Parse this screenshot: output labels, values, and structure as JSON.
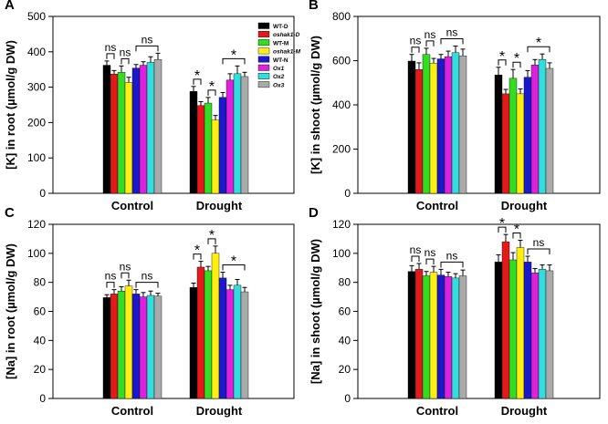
{
  "chart_data": [
    {
      "panel": "A",
      "type": "bar",
      "title": "",
      "xlabel": "",
      "ylabel": "[K] in root (µmol/g DW)",
      "ylim": [
        0,
        500
      ],
      "yticks": [
        0,
        100,
        200,
        300,
        400,
        500
      ],
      "categories": [
        "Control",
        "Drought"
      ],
      "series": [
        {
          "name": "WT-D",
          "color": "#000000",
          "values": [
            362,
            288
          ],
          "errors": [
            12,
            14
          ]
        },
        {
          "name": "oshak1-D",
          "color": "#e41a1a",
          "values": [
            337,
            248
          ],
          "errors": [
            10,
            11
          ]
        },
        {
          "name": "WT-M",
          "color": "#33dd22",
          "values": [
            342,
            255
          ],
          "errors": [
            18,
            16
          ]
        },
        {
          "name": "oshak1-M",
          "color": "#ffee11",
          "values": [
            313,
            207
          ],
          "errors": [
            15,
            13
          ]
        },
        {
          "name": "WT-N",
          "color": "#1a1acc",
          "values": [
            354,
            271
          ],
          "errors": [
            10,
            14
          ]
        },
        {
          "name": "Ox1",
          "color": "#dd22dd",
          "values": [
            362,
            320
          ],
          "errors": [
            10,
            18
          ]
        },
        {
          "name": "Ox2",
          "color": "#33dddd",
          "values": [
            370,
            338
          ],
          "errors": [
            16,
            22
          ]
        },
        {
          "name": "Ox3",
          "color": "#aaaaaa",
          "values": [
            378,
            330
          ],
          "errors": [
            18,
            12
          ]
        }
      ],
      "annotations": {
        "control": [
          "ns",
          "ns",
          "ns"
        ],
        "drought": [
          "*",
          "*",
          "*"
        ]
      },
      "legend": "top-right"
    },
    {
      "panel": "B",
      "type": "bar",
      "title": "",
      "xlabel": "",
      "ylabel": "[K] in shoot (µmol/g DW)",
      "ylim": [
        0,
        800
      ],
      "yticks": [
        0,
        200,
        400,
        600,
        800
      ],
      "categories": [
        "Control",
        "Drought"
      ],
      "series": [
        {
          "name": "WT-D",
          "values": [
            598,
            535
          ],
          "errors": [
            30,
            35
          ]
        },
        {
          "name": "oshak1-D",
          "values": [
            560,
            450
          ],
          "errors": [
            30,
            20
          ]
        },
        {
          "name": "WT-M",
          "values": [
            628,
            520
          ],
          "errors": [
            28,
            40
          ]
        },
        {
          "name": "oshak1-M",
          "values": [
            588,
            450
          ],
          "errors": [
            22,
            22
          ]
        },
        {
          "name": "WT-N",
          "values": [
            608,
            525
          ],
          "errors": [
            20,
            30
          ]
        },
        {
          "name": "Ox1",
          "values": [
            618,
            580
          ],
          "errors": [
            25,
            25
          ]
        },
        {
          "name": "Ox2",
          "values": [
            636,
            605
          ],
          "errors": [
            30,
            25
          ]
        },
        {
          "name": "Ox3",
          "values": [
            622,
            565
          ],
          "errors": [
            30,
            25
          ]
        }
      ],
      "annotations": {
        "control": [
          "ns",
          "ns",
          "ns"
        ],
        "drought": [
          "*",
          "*",
          "*"
        ]
      }
    },
    {
      "panel": "C",
      "type": "bar",
      "title": "",
      "xlabel": "",
      "ylabel": "[Na] in root (µmol/g DW)",
      "ylim": [
        0,
        120
      ],
      "yticks": [
        0,
        20,
        40,
        60,
        80,
        100,
        120
      ],
      "categories": [
        "Control",
        "Drought"
      ],
      "series": [
        {
          "name": "WT-D",
          "values": [
            69.5,
            76.5
          ],
          "errors": [
            2,
            3
          ]
        },
        {
          "name": "oshak1-D",
          "values": [
            72,
            90.5
          ],
          "errors": [
            3,
            4
          ]
        },
        {
          "name": "WT-M",
          "values": [
            74,
            88
          ],
          "errors": [
            3,
            3
          ]
        },
        {
          "name": "oshak1-M",
          "values": [
            77.5,
            100
          ],
          "errors": [
            4,
            5
          ]
        },
        {
          "name": "WT-N",
          "values": [
            72,
            83
          ],
          "errors": [
            3,
            4
          ]
        },
        {
          "name": "Ox1",
          "values": [
            70,
            75
          ],
          "errors": [
            3,
            3
          ]
        },
        {
          "name": "Ox2",
          "values": [
            71,
            78
          ],
          "errors": [
            3,
            4
          ]
        },
        {
          "name": "Ox3",
          "values": [
            70.5,
            73.5
          ],
          "errors": [
            2,
            3
          ]
        }
      ],
      "annotations": {
        "control": [
          "ns",
          "ns",
          "ns"
        ],
        "drought": [
          "*",
          "*",
          "*"
        ]
      }
    },
    {
      "panel": "D",
      "type": "bar",
      "title": "",
      "xlabel": "",
      "ylabel": "[Na] in shoot (µmol/g DW)",
      "ylim": [
        0,
        120
      ],
      "yticks": [
        0,
        20,
        40,
        60,
        80,
        100,
        120
      ],
      "categories": [
        "Control",
        "Drought"
      ],
      "series": [
        {
          "name": "WT-D",
          "values": [
            87.5,
            94
          ],
          "errors": [
            4,
            5
          ]
        },
        {
          "name": "oshak1-D",
          "values": [
            89,
            108
          ],
          "errors": [
            4,
            5
          ]
        },
        {
          "name": "WT-M",
          "values": [
            84.5,
            95.5
          ],
          "errors": [
            3,
            5
          ]
        },
        {
          "name": "oshak1-M",
          "values": [
            87,
            104
          ],
          "errors": [
            4,
            5
          ]
        },
        {
          "name": "WT-N",
          "values": [
            85,
            94
          ],
          "errors": [
            4,
            4
          ]
        },
        {
          "name": "Ox1",
          "values": [
            84,
            86.5
          ],
          "errors": [
            3,
            3
          ]
        },
        {
          "name": "Ox2",
          "values": [
            83,
            89
          ],
          "errors": [
            3,
            3
          ]
        },
        {
          "name": "Ox3",
          "values": [
            84.5,
            88
          ],
          "errors": [
            4,
            4
          ]
        }
      ],
      "annotations": {
        "control": [
          "ns",
          "ns",
          "ns"
        ],
        "drought": [
          "*",
          "*",
          "ns"
        ]
      }
    }
  ]
}
